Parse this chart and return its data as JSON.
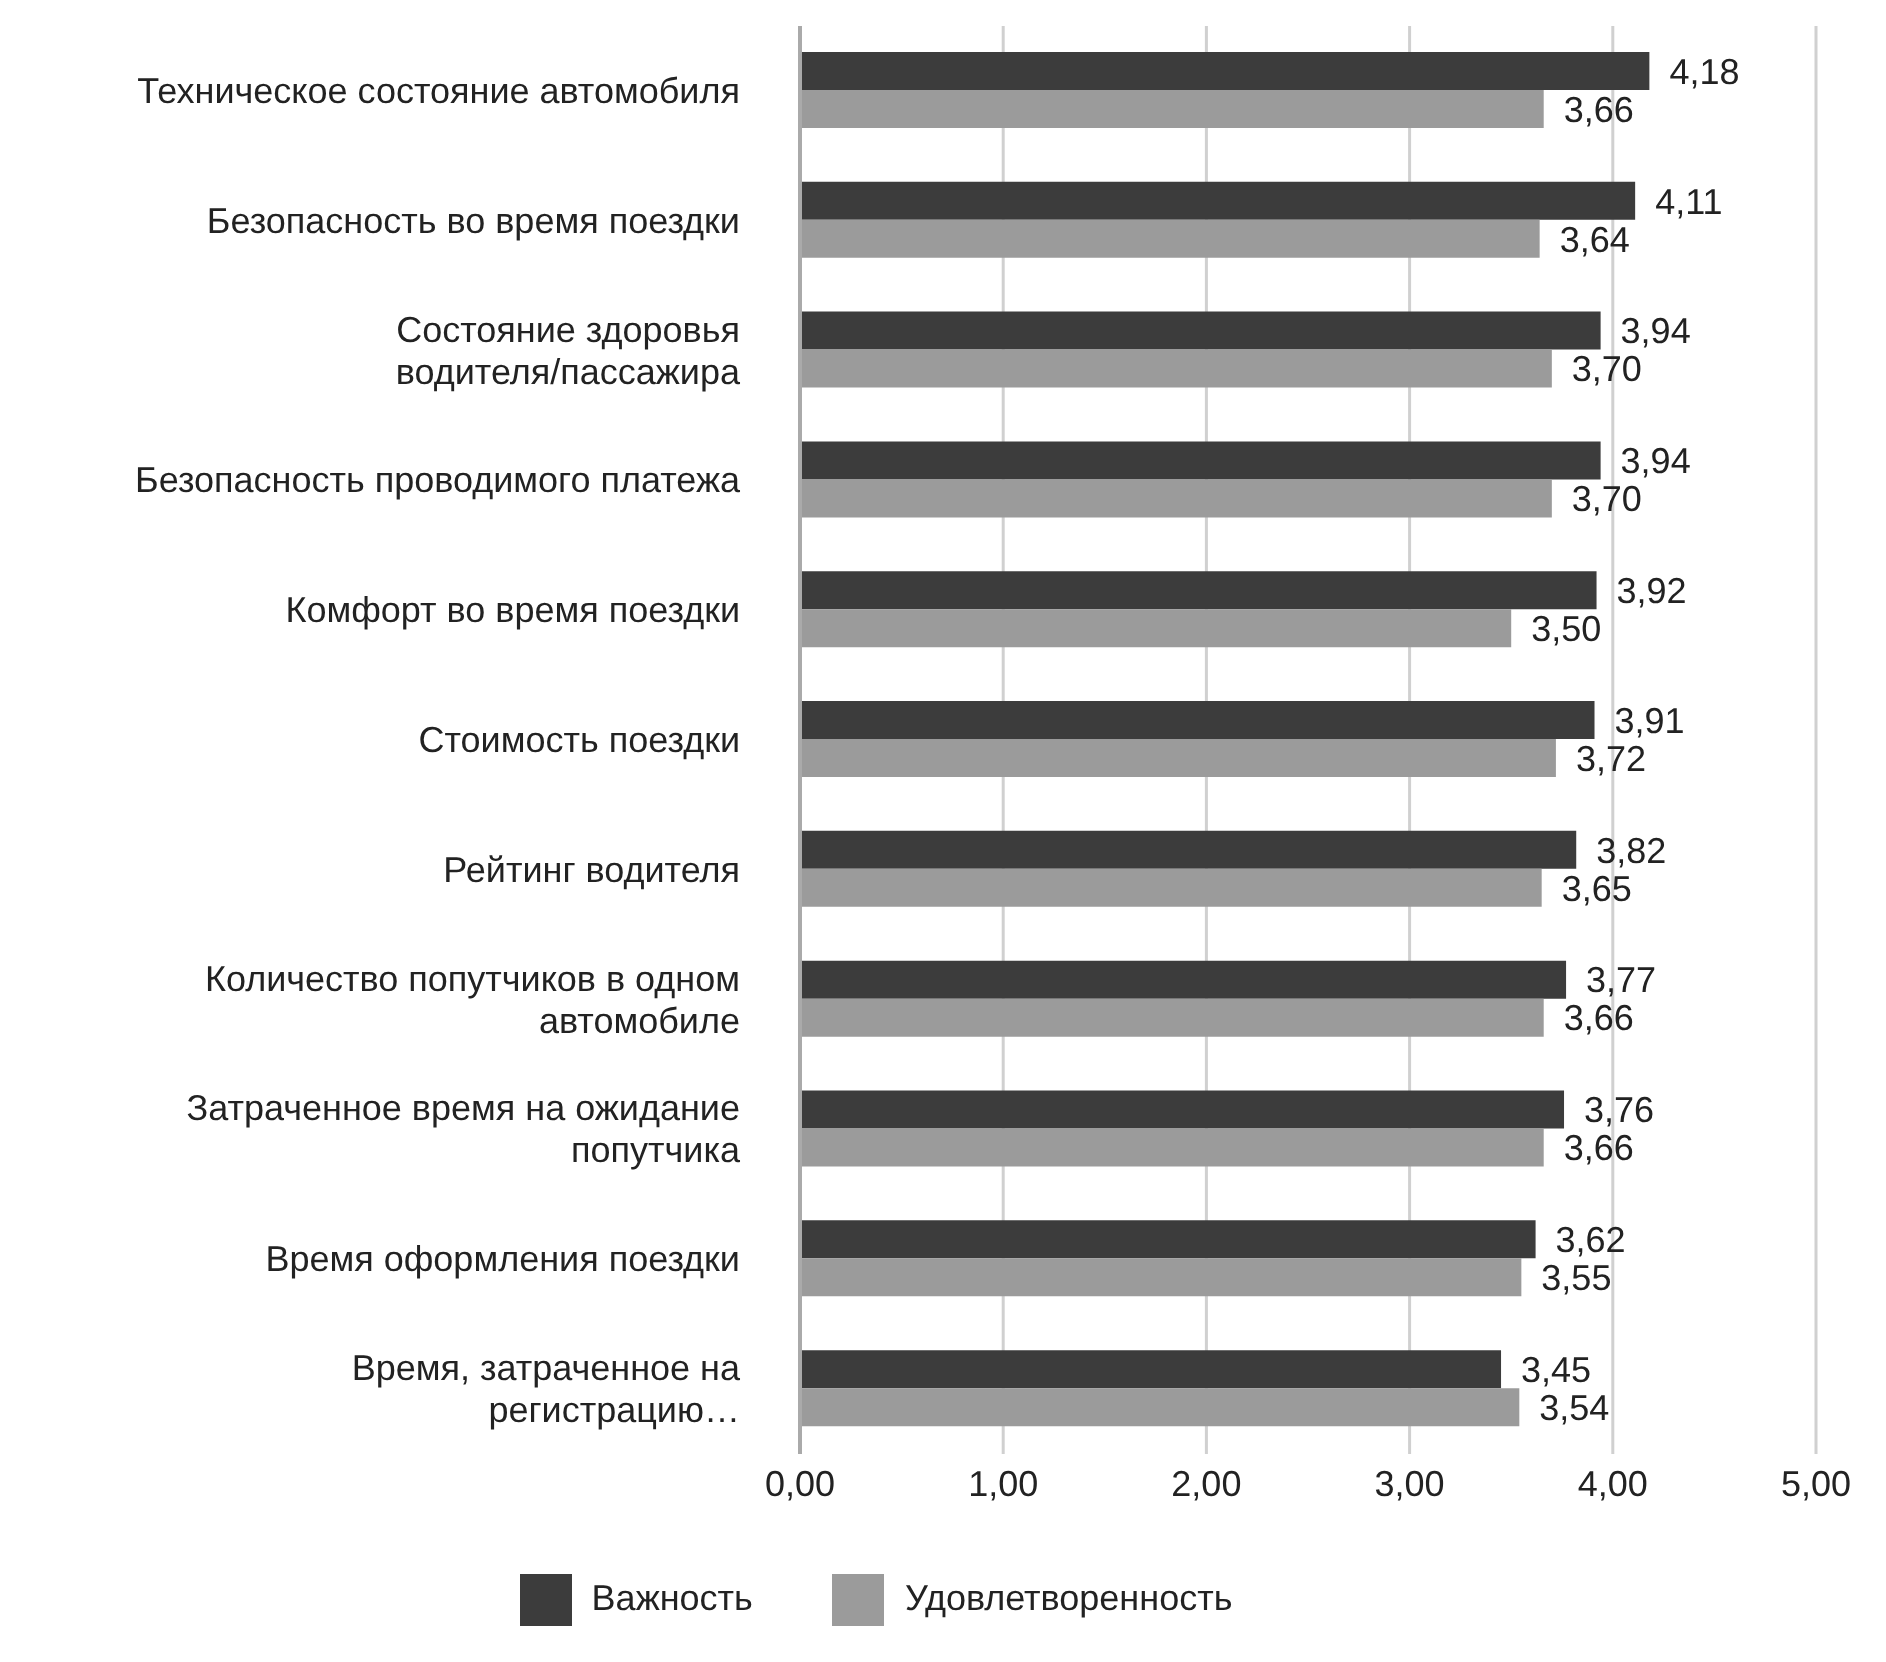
{
  "chart_data": {
    "type": "bar",
    "orientation": "horizontal",
    "categories": [
      "Техническое состояние автомобиля",
      "Безопасность во время поездки",
      "Состояние здоровья водителя/пассажира",
      "Безопасность проводимого платежа",
      "Комфорт во время поездки",
      "Стоимость поездки",
      "Рейтинг водителя",
      "Количество попутчиков в одном автомобиле",
      "Затраченное время на ожидание попутчика",
      "Время оформления поездки",
      "Время, затраченное на регистрацию…"
    ],
    "series": [
      {
        "name": "Важность",
        "color": "#3c3c3c",
        "values": [
          4.18,
          4.11,
          3.94,
          3.94,
          3.92,
          3.91,
          3.82,
          3.77,
          3.76,
          3.62,
          3.45
        ],
        "value_labels": [
          "4,18",
          "4,11",
          "3,94",
          "3,94",
          "3,92",
          "3,91",
          "3,82",
          "3,77",
          "3,76",
          "3,62",
          "3,45"
        ]
      },
      {
        "name": "Удовлетворенность",
        "color": "#9b9b9b",
        "values": [
          3.66,
          3.64,
          3.7,
          3.7,
          3.5,
          3.72,
          3.65,
          3.66,
          3.66,
          3.55,
          3.54
        ],
        "value_labels": [
          "3,66",
          "3,64",
          "3,70",
          "3,70",
          "3,50",
          "3,72",
          "3,65",
          "3,66",
          "3,66",
          "3,55",
          "3,54"
        ]
      }
    ],
    "xlim": [
      0,
      5
    ],
    "xticks": [
      {
        "value": 0,
        "label": "0,00"
      },
      {
        "value": 1,
        "label": "1,00"
      },
      {
        "value": 2,
        "label": "2,00"
      },
      {
        "value": 3,
        "label": "3,00"
      },
      {
        "value": 4,
        "label": "4,00"
      },
      {
        "value": 5,
        "label": "5,00"
      }
    ],
    "grid": "x",
    "legend": "bottom"
  }
}
